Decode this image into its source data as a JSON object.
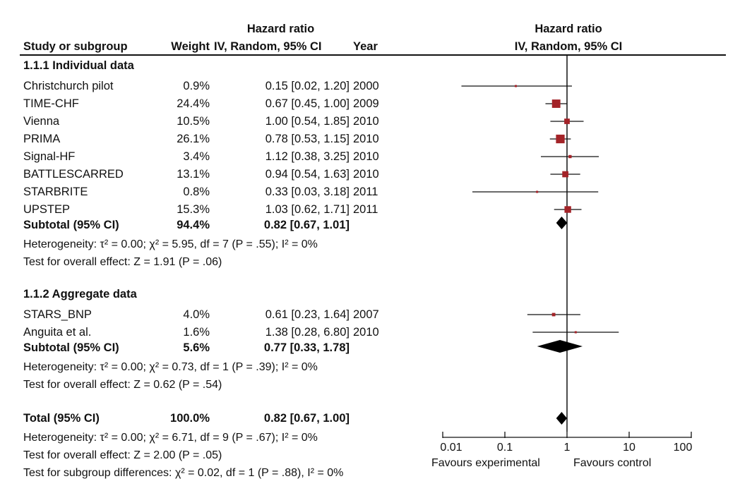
{
  "header": {
    "hr_group": "Hazard ratio",
    "study_col": "Study or subgroup",
    "weight_col": "Weight",
    "hr_col": "IV, Random, 95% CI",
    "year_col": "Year",
    "plot_group": "Hazard ratio",
    "plot_sub": "IV, Random, 95% CI"
  },
  "groups": [
    {
      "title": "1.1.1 Individual data",
      "subtotal_label": "Subtotal (95% CI)",
      "subtotal_weight": "94.4%",
      "subtotal_hr": "0.82 [0.67, 1.01]",
      "heterogeneity": "Heterogeneity: τ² = 0.00; χ² = 5.95, df = 7 (P = .55); I² = 0%",
      "overall": "Test for overall effect: Z = 1.91 (P = .06)"
    },
    {
      "title": "1.1.2 Aggregate data",
      "subtotal_label": "Subtotal (95% CI)",
      "subtotal_weight": "5.6%",
      "subtotal_hr": "0.77 [0.33, 1.78]",
      "heterogeneity": "Heterogeneity: τ² = 0.00; χ² = 0.73, df = 1 (P = .39); I² = 0%",
      "overall": "Test for overall effect: Z = 0.62 (P = .54)"
    }
  ],
  "total": {
    "label": "Total (95% CI)",
    "weight": "100.0%",
    "hr": "0.82 [0.67, 1.00]",
    "heterogeneity": "Heterogeneity: τ² = 0.00;  χ² = 6.71, df = 9 (P = .67); I² = 0%",
    "overall": "Test for overall effect: Z = 2.00 (P = .05)",
    "subgroup": "Test for subgroup differences: χ² = 0.02, df = 1 (P = .88), I² = 0%"
  },
  "chart_data": {
    "type": "forest",
    "x_scale": "log",
    "xlim": [
      0.01,
      100
    ],
    "reference_line": 1,
    "x_ticks": [
      "0.01",
      "0.1",
      "1",
      "10",
      "100"
    ],
    "x_favours_left": "Favours experimental",
    "x_favours_right": "Favours control",
    "marker_color": "#a32328",
    "studies": [
      {
        "name": "Christchurch pilot",
        "weight": "0.9%",
        "hr_text": "0.15 [0.02, 1.20]",
        "year": "2000",
        "hr": 0.15,
        "lo": 0.02,
        "hi": 1.2,
        "w": 0.9,
        "group": 0
      },
      {
        "name": "TIME-CHF",
        "weight": "24.4%",
        "hr_text": "0.67 [0.45, 1.00]",
        "year": "2009",
        "hr": 0.67,
        "lo": 0.45,
        "hi": 1.0,
        "w": 24.4,
        "group": 0
      },
      {
        "name": "Vienna",
        "weight": "10.5%",
        "hr_text": "1.00 [0.54, 1.85]",
        "year": "2010",
        "hr": 1.0,
        "lo": 0.54,
        "hi": 1.85,
        "w": 10.5,
        "group": 0
      },
      {
        "name": "PRIMA",
        "weight": "26.1%",
        "hr_text": "0.78 [0.53, 1.15]",
        "year": "2010",
        "hr": 0.78,
        "lo": 0.53,
        "hi": 1.15,
        "w": 26.1,
        "group": 0
      },
      {
        "name": "Signal-HF",
        "weight": "3.4%",
        "hr_text": "1.12 [0.38, 3.25]",
        "year": "2010",
        "hr": 1.12,
        "lo": 0.38,
        "hi": 3.25,
        "w": 3.4,
        "group": 0
      },
      {
        "name": "BATTLESCARRED",
        "weight": "13.1%",
        "hr_text": "0.94 [0.54, 1.63]",
        "year": "2010",
        "hr": 0.94,
        "lo": 0.54,
        "hi": 1.63,
        "w": 13.1,
        "group": 0
      },
      {
        "name": "STARBRITE",
        "weight": "0.8%",
        "hr_text": "0.33 [0.03, 3.18]",
        "year": "2011",
        "hr": 0.33,
        "lo": 0.03,
        "hi": 3.18,
        "w": 0.8,
        "group": 0
      },
      {
        "name": "UPSTEP",
        "weight": "15.3%",
        "hr_text": "1.03 [0.62, 1.71]",
        "year": "2011",
        "hr": 1.03,
        "lo": 0.62,
        "hi": 1.71,
        "w": 15.3,
        "group": 0
      },
      {
        "name": "STARS_BNP",
        "weight": "4.0%",
        "hr_text": "0.61 [0.23, 1.64]",
        "year": "2007",
        "hr": 0.61,
        "lo": 0.23,
        "hi": 1.64,
        "w": 4.0,
        "group": 1
      },
      {
        "name": "Anguita et al.",
        "weight": "1.6%",
        "hr_text": "1.38 [0.28, 6.80]",
        "year": "2010",
        "hr": 1.38,
        "lo": 0.28,
        "hi": 6.8,
        "w": 1.6,
        "group": 1
      }
    ],
    "summaries": [
      {
        "label": "Subtotal (95% CI)",
        "hr": 0.82,
        "lo": 0.67,
        "hi": 1.01
      },
      {
        "label": "Subtotal (95% CI)",
        "hr": 0.77,
        "lo": 0.33,
        "hi": 1.78
      },
      {
        "label": "Total (95% CI)",
        "hr": 0.82,
        "lo": 0.67,
        "hi": 1.0
      }
    ]
  }
}
